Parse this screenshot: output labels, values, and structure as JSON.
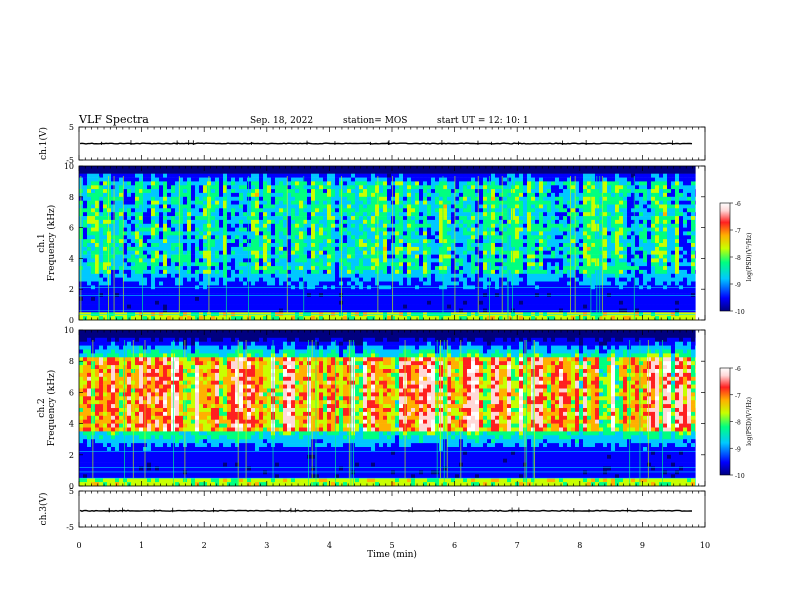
{
  "header": {
    "title": "VLF Spectra",
    "date": "Sep. 18, 2022",
    "station": "station= MOS",
    "start": "start  UT  =    12: 10: 1"
  },
  "colors": {
    "colormap": [
      "#000080",
      "#0000ff",
      "#00c8ff",
      "#00ff80",
      "#c8ff00",
      "#ffb000",
      "#ff2020",
      "#ffd8d8",
      "#ffffff"
    ],
    "background": "#000000",
    "line": "#000000"
  },
  "chart_data": [
    {
      "id": "ch1-voltage",
      "type": "line",
      "ylabel": "ch.1(V)",
      "y_ticks": [
        "5",
        "-5"
      ],
      "ylim": [
        -5,
        5
      ],
      "level": 0,
      "xlim": [
        0,
        10
      ]
    },
    {
      "id": "ch1-spectrogram",
      "type": "heatmap",
      "ylabel": "ch.1\nFrequency (kHz)",
      "y_ticks": [
        "0",
        "2",
        "4",
        "6",
        "8",
        "10"
      ],
      "ylim": [
        0,
        10
      ],
      "xlim": [
        0,
        9.85
      ],
      "band_kHz": [
        3.0,
        9.0
      ],
      "band_level": 0.45,
      "horizontal_lines_kHz": [
        2.1,
        1.6,
        0.6,
        0.35
      ],
      "colorbar": {
        "label": "log(PSD)(V²/Hz)",
        "ticks": [
          "-6",
          "-7",
          "-8",
          "-9",
          "-10"
        ],
        "range": [
          -10,
          -6
        ]
      }
    },
    {
      "id": "ch2-spectrogram",
      "type": "heatmap",
      "ylabel": "ch.2\nFrequency (kHz)",
      "y_ticks": [
        "0",
        "2",
        "4",
        "6",
        "8",
        "10"
      ],
      "ylim": [
        0,
        10
      ],
      "xlim": [
        0,
        9.85
      ],
      "band_kHz": [
        3.5,
        8.2
      ],
      "band_level": 0.85,
      "horizontal_lines_kHz": [
        2.2,
        1.2,
        0.9,
        0.5
      ],
      "colorbar": {
        "label": "log(PSD)(V²/Hz)",
        "ticks": [
          "-6",
          "-7",
          "-8",
          "-9",
          "-10"
        ],
        "range": [
          -10,
          -6
        ]
      }
    },
    {
      "id": "ch3-voltage",
      "type": "line",
      "ylabel": "ch.3(V)",
      "y_ticks": [
        "5",
        "-5"
      ],
      "ylim": [
        -5,
        5
      ],
      "level": -0.5,
      "xlim": [
        0,
        10
      ]
    }
  ],
  "x_axis": {
    "label": "Time  (min)",
    "ticks": [
      "0",
      "1",
      "2",
      "3",
      "4",
      "5",
      "6",
      "7",
      "8",
      "9",
      "10"
    ],
    "xlim": [
      0,
      10
    ]
  }
}
